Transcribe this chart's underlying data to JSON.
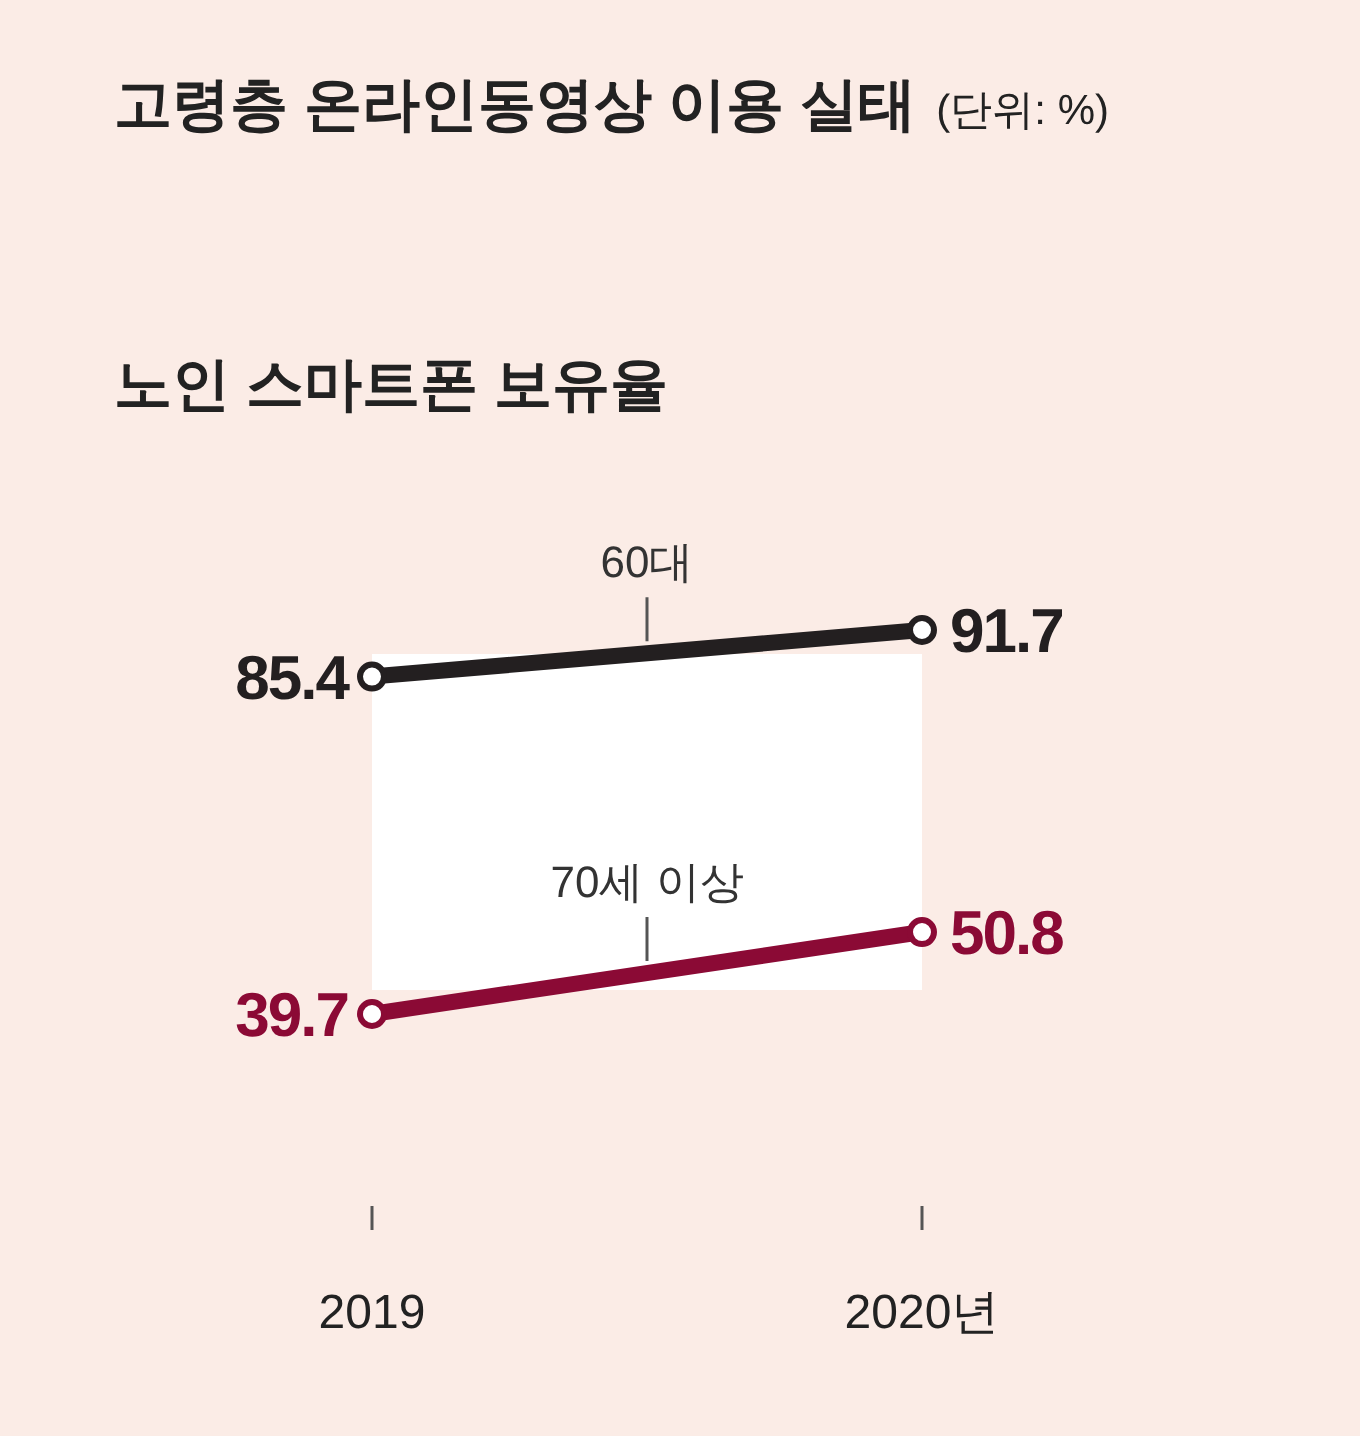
{
  "chart_data": {
    "type": "line",
    "title": "고령층 온라인동영상 이용 실태",
    "annotations": [
      "(단위: %)"
    ],
    "subtitle": "노인 스마트폰 보유율",
    "categories": [
      "2019",
      "2020년"
    ],
    "series": [
      {
        "name": "60대",
        "color": "#231f20",
        "values": [
          85.4,
          91.7
        ]
      },
      {
        "name": "70세 이상",
        "color": "#8b0a35",
        "values": [
          39.7,
          50.8
        ]
      }
    ],
    "data_labels": true,
    "marker": "circle",
    "line_style": "solid"
  }
}
